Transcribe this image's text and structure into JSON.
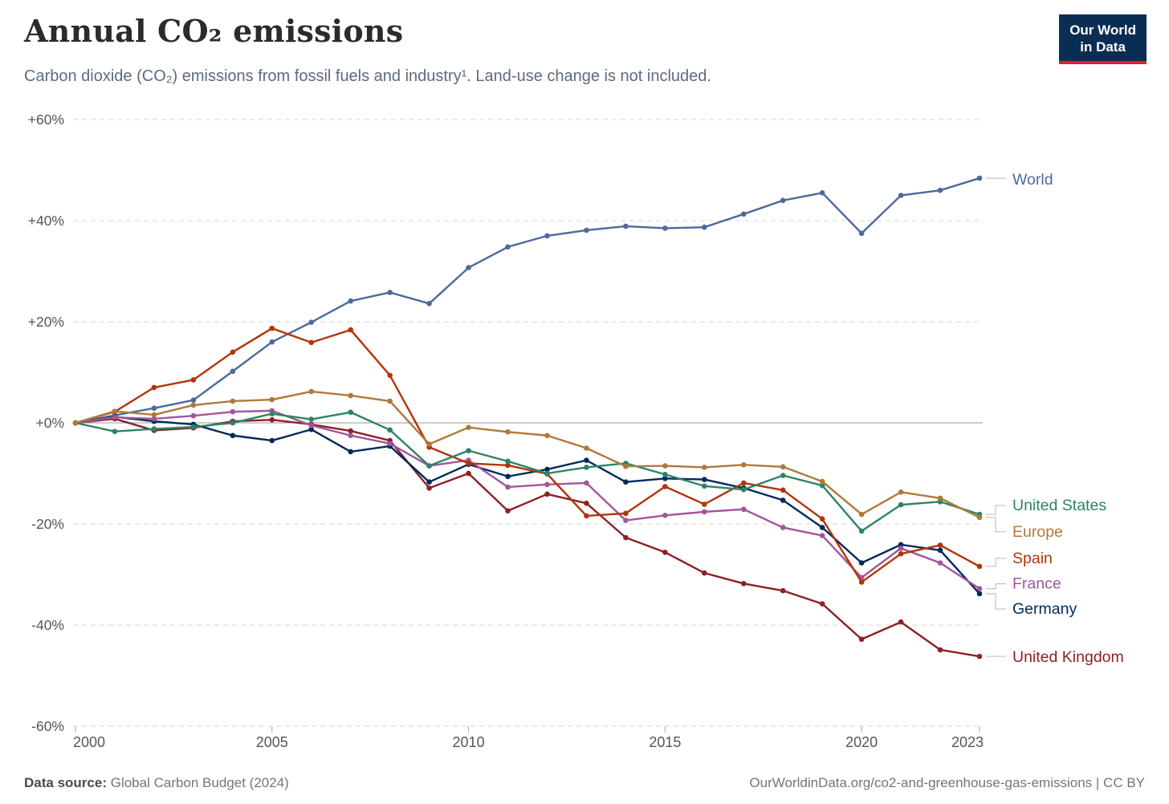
{
  "header": {
    "title": "Annual CO₂ emissions",
    "subtitle": "Carbon dioxide (CO₂) emissions from fossil fuels and industry¹. Land-use change is not included."
  },
  "logo": {
    "line1": "Our World",
    "line2": "in Data"
  },
  "footer": {
    "source_label": "Data source:",
    "source_value": "Global Carbon Budget (2024)",
    "link": "OurWorldinData.org/co2-and-greenhouse-gas-emissions | CC BY"
  },
  "chart_data": {
    "type": "line",
    "title": "Annual CO₂ emissions",
    "subtitle": "Carbon dioxide (CO₂) emissions from fossil fuels and industry¹. Land-use change is not included.",
    "xlabel": "",
    "ylabel": "",
    "unit": "% change since 2000",
    "grid": true,
    "legend_position": "right-edge-labels",
    "ylim": [
      -60,
      60
    ],
    "yticks": [
      {
        "value": 60,
        "label": "+60%"
      },
      {
        "value": 40,
        "label": "+40%"
      },
      {
        "value": 20,
        "label": "+20%"
      },
      {
        "value": 0,
        "label": "+0%"
      },
      {
        "value": -20,
        "label": "-20%"
      },
      {
        "value": -40,
        "label": "-40%"
      },
      {
        "value": -60,
        "label": "-60%"
      }
    ],
    "xticks": [
      2000,
      2005,
      2010,
      2015,
      2020,
      2023
    ],
    "x": [
      2000,
      2001,
      2002,
      2003,
      2004,
      2005,
      2006,
      2007,
      2008,
      2009,
      2010,
      2011,
      2012,
      2013,
      2014,
      2015,
      2016,
      2017,
      2018,
      2019,
      2020,
      2021,
      2022,
      2023
    ],
    "series": [
      {
        "name": "World",
        "color": "#4C6A9C",
        "values": [
          0,
          1.5,
          2.9,
          4.5,
          10.2,
          16.0,
          19.9,
          24.1,
          25.8,
          23.6,
          30.7,
          34.8,
          37.0,
          38.1,
          38.9,
          38.5,
          38.7,
          41.3,
          44.0,
          45.5,
          37.5,
          45.0,
          46.0,
          48.4
        ]
      },
      {
        "name": "United States",
        "color": "#2C8465",
        "values": [
          0,
          -1.7,
          -1.2,
          -0.8,
          0.0,
          1.8,
          0.7,
          2.1,
          -1.4,
          -8.5,
          -5.5,
          -7.6,
          -10.0,
          -8.8,
          -8.0,
          -10.2,
          -12.5,
          -13.2,
          -10.4,
          -12.4,
          -21.4,
          -16.2,
          -15.6,
          -18.1
        ]
      },
      {
        "name": "Europe",
        "color": "#B0793A",
        "values": [
          0,
          2.3,
          1.6,
          3.5,
          4.3,
          4.6,
          6.2,
          5.4,
          4.3,
          -4.2,
          -0.9,
          -1.8,
          -2.5,
          -5.0,
          -8.6,
          -8.5,
          -8.8,
          -8.3,
          -8.7,
          -11.6,
          -18.1,
          -13.7,
          -14.9,
          -18.7
        ]
      },
      {
        "name": "Spain",
        "color": "#B13507",
        "values": [
          0,
          2.2,
          7.0,
          8.5,
          14.0,
          18.7,
          15.9,
          18.4,
          9.4,
          -4.8,
          -8.0,
          -8.4,
          -10.1,
          -18.4,
          -17.9,
          -12.6,
          -16.1,
          -11.9,
          -13.3,
          -19.0,
          -31.5,
          -25.9,
          -24.2,
          -28.4
        ]
      },
      {
        "name": "France",
        "color": "#A2559C",
        "values": [
          0,
          1.1,
          0.8,
          1.4,
          2.2,
          2.4,
          -0.5,
          -2.5,
          -4.1,
          -8.5,
          -7.4,
          -12.7,
          -12.2,
          -11.9,
          -19.3,
          -18.3,
          -17.6,
          -17.1,
          -20.7,
          -22.3,
          -30.6,
          -24.8,
          -27.7,
          -32.8
        ]
      },
      {
        "name": "Germany",
        "color": "#00295B",
        "values": [
          0,
          1.2,
          0.3,
          -0.3,
          -2.5,
          -3.5,
          -1.3,
          -5.7,
          -4.6,
          -11.7,
          -8.2,
          -10.6,
          -9.2,
          -7.4,
          -11.7,
          -11.0,
          -11.2,
          -12.9,
          -15.3,
          -20.7,
          -27.7,
          -24.1,
          -25.2,
          -33.8
        ]
      },
      {
        "name": "United Kingdom",
        "color": "#8C2126",
        "values": [
          0,
          0.8,
          -1.5,
          -1.0,
          0.3,
          0.6,
          -0.3,
          -1.6,
          -3.5,
          -12.9,
          -10.0,
          -17.4,
          -14.1,
          -15.9,
          -22.7,
          -25.6,
          -29.7,
          -31.8,
          -33.2,
          -35.8,
          -42.8,
          -39.4,
          -44.9,
          -46.2
        ]
      }
    ]
  }
}
